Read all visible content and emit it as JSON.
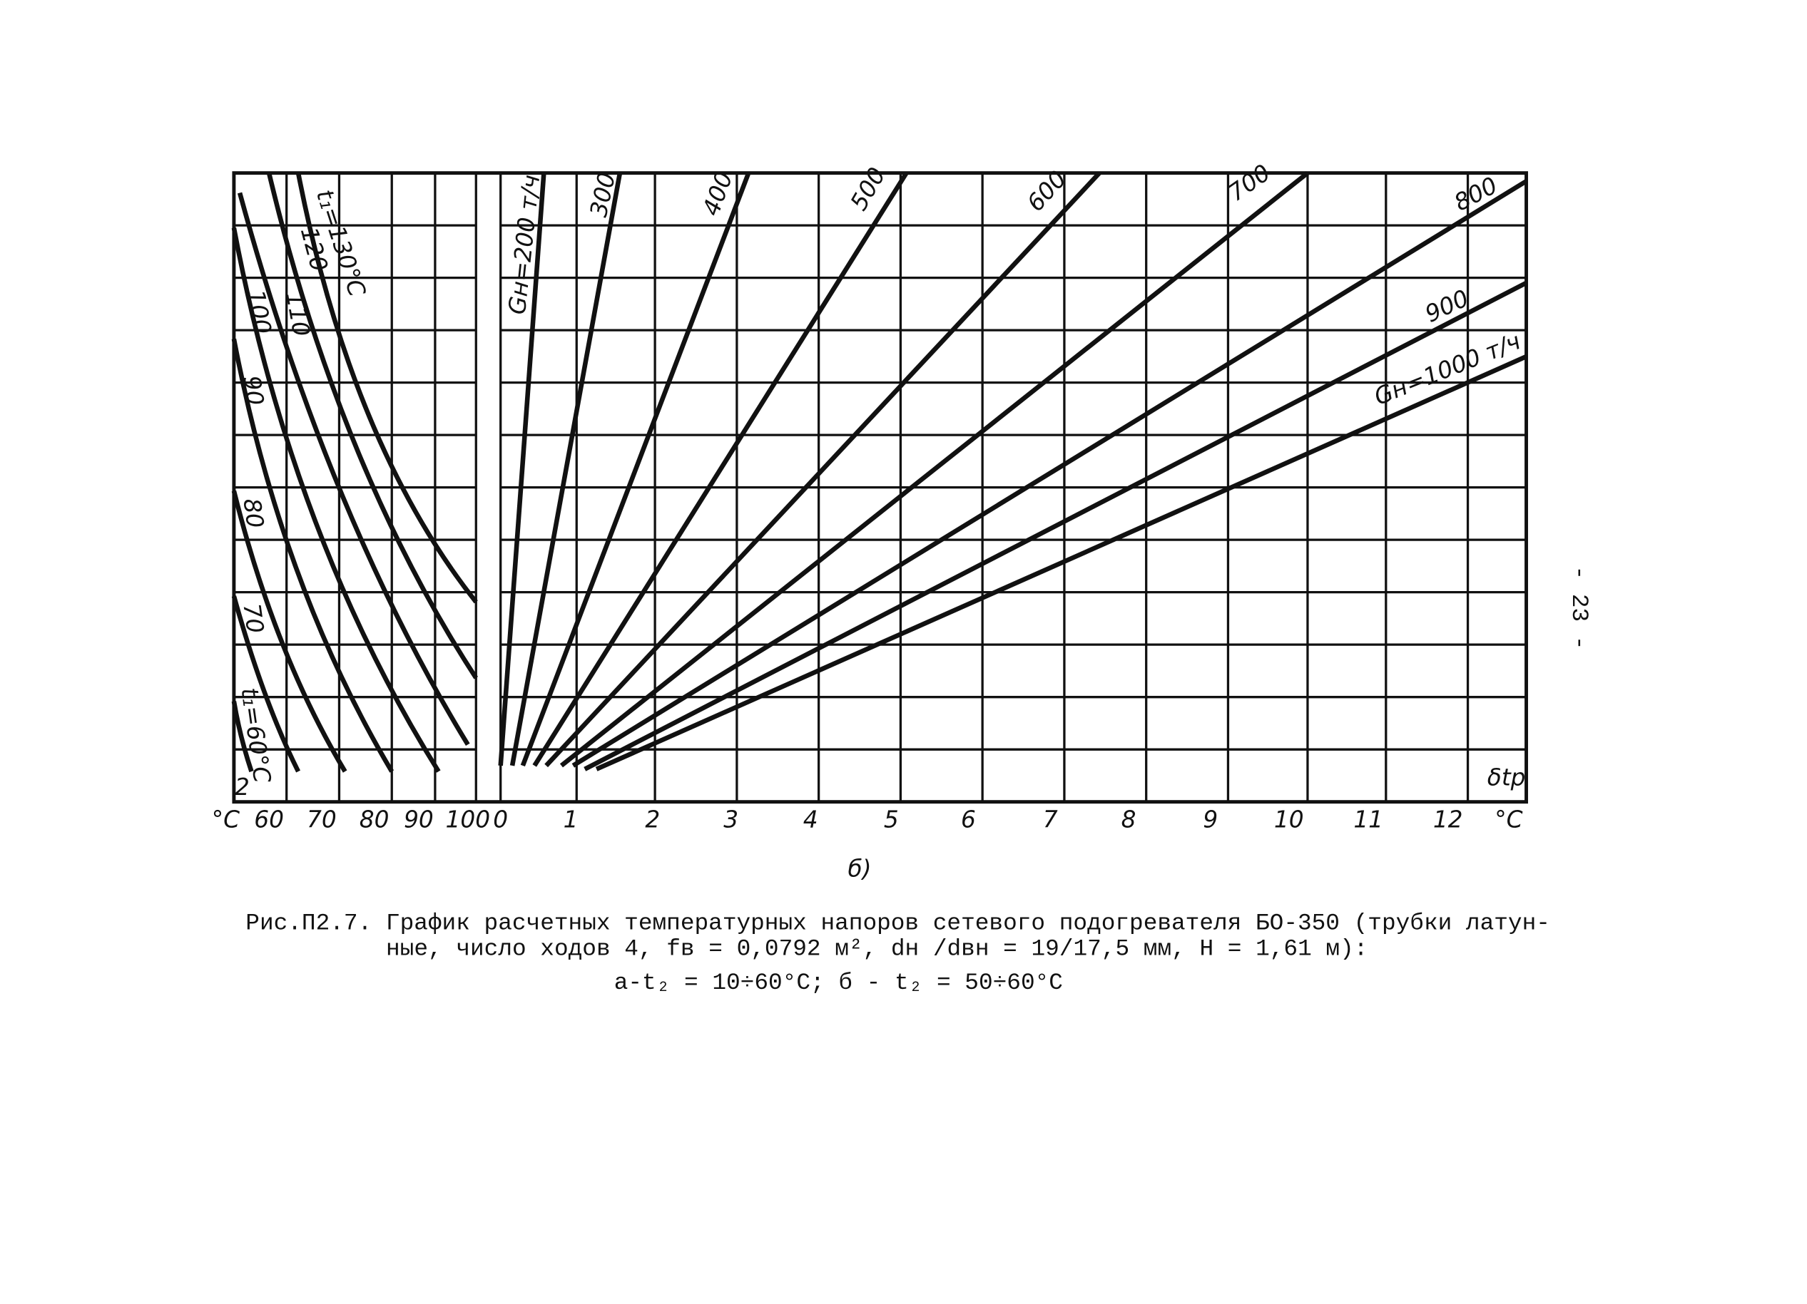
{
  "figure": {
    "curve_labels_left": [
      "t₁=130°C",
      "120",
      "110",
      "100",
      "90",
      "80",
      "70",
      "t₁=60°C"
    ],
    "curve_labels_right": [
      "Gн=200 т/ч",
      "300",
      "400",
      "500",
      "600",
      "700",
      "800",
      "900",
      "Gн=1000 т/ч"
    ],
    "axis_label": "δtр",
    "small_label": "2",
    "x_labels_left": [
      "°C",
      "60",
      "70",
      "80",
      "90",
      "100"
    ],
    "x_labels_right": [
      "0",
      "1",
      "2",
      "3",
      "4",
      "5",
      "6",
      "7",
      "8",
      "9",
      "10",
      "11",
      "12",
      "°C"
    ],
    "panel_label": "б)"
  },
  "caption": {
    "line1": "Рис.П2.7. График расчетных температурных напоров сетевого подогревателя БО-350 (трубки латун-",
    "line2": "ные, число ходов 4, fв = 0,0792 м², dн /dвн = 19/17,5 мм, H = 1,61 м):",
    "line3": "а-t₂ = 10÷60°C; б - t₂ = 50÷60°C"
  },
  "page_number": "- 23 -"
}
